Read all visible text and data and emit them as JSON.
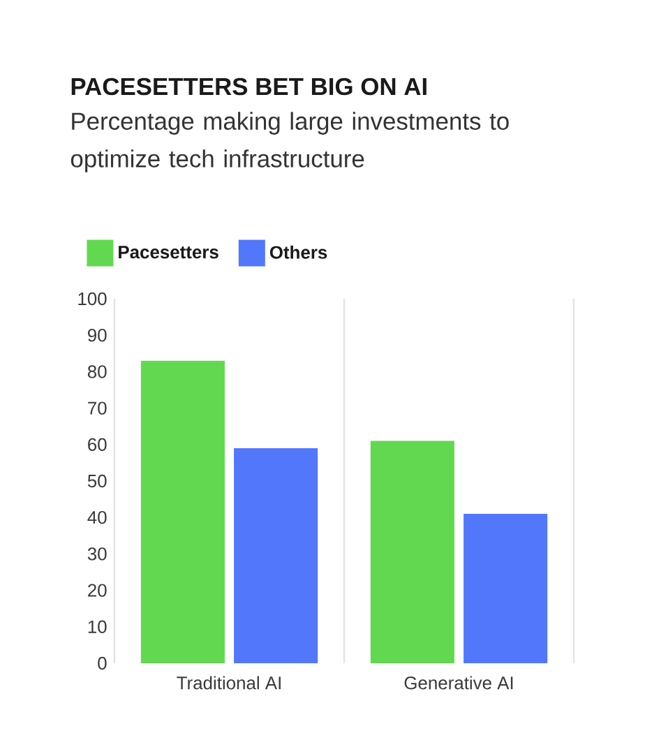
{
  "chart_data": {
    "type": "bar",
    "title": "PACESETTERS BET BIG ON AI",
    "subtitle": "Percentage making large investments to optimize tech infrastructure",
    "categories": [
      "Traditional AI",
      "Generative AI"
    ],
    "series": [
      {
        "name": "Pacesetters",
        "color": "#62d850",
        "values": [
          83,
          61
        ]
      },
      {
        "name": "Others",
        "color": "#5277fb",
        "values": [
          59,
          41
        ]
      }
    ],
    "ylim": [
      0,
      100
    ],
    "yticks": [
      0,
      10,
      20,
      30,
      40,
      50,
      60,
      70,
      80,
      90,
      100
    ],
    "grid": "x",
    "legend": "top left"
  }
}
